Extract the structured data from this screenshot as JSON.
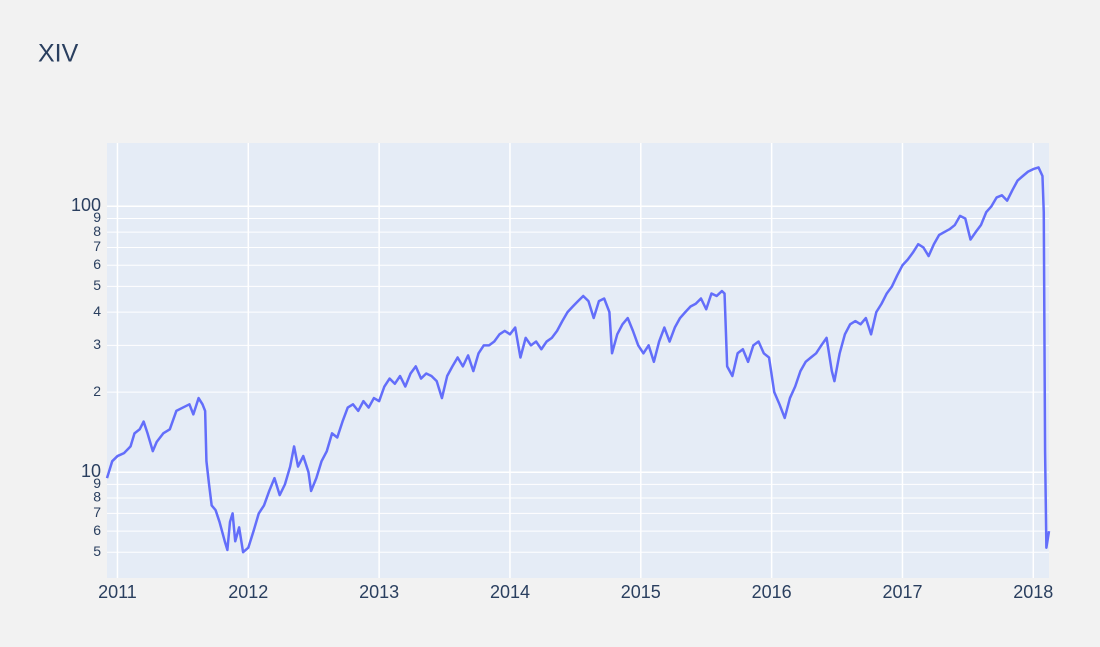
{
  "chart_data": {
    "type": "line",
    "title": "XIV",
    "color": "#636efa",
    "log_y": true,
    "grid": true,
    "xlim": [
      2010.92,
      2018.12
    ],
    "xticks": [
      2011,
      2012,
      2013,
      2014,
      2015,
      2016,
      2017,
      2018
    ],
    "ylim": [
      4,
      173
    ],
    "yticks": [
      5,
      6,
      7,
      8,
      9,
      10,
      {
        "value": 20,
        "label": "2"
      },
      {
        "value": 30,
        "label": "3"
      },
      {
        "value": 40,
        "label": "4"
      },
      {
        "value": 50,
        "label": "5"
      },
      {
        "value": 60,
        "label": "6"
      },
      {
        "value": 70,
        "label": "7"
      },
      {
        "value": 80,
        "label": "8"
      },
      {
        "value": 90,
        "label": "9"
      },
      100
    ],
    "x": [
      2010.92,
      2010.96,
      2011.0,
      2011.05,
      2011.1,
      2011.13,
      2011.17,
      2011.2,
      2011.23,
      2011.27,
      2011.3,
      2011.35,
      2011.4,
      2011.45,
      2011.5,
      2011.55,
      2011.58,
      2011.62,
      2011.65,
      2011.67,
      2011.68,
      2011.7,
      2011.72,
      2011.75,
      2011.78,
      2011.82,
      2011.84,
      2011.86,
      2011.88,
      2011.9,
      2011.93,
      2011.96,
      2012.0,
      2012.04,
      2012.08,
      2012.12,
      2012.16,
      2012.2,
      2012.24,
      2012.28,
      2012.32,
      2012.35,
      2012.38,
      2012.42,
      2012.46,
      2012.48,
      2012.52,
      2012.56,
      2012.6,
      2012.64,
      2012.68,
      2012.72,
      2012.76,
      2012.8,
      2012.84,
      2012.88,
      2012.92,
      2012.96,
      2013.0,
      2013.04,
      2013.08,
      2013.12,
      2013.16,
      2013.2,
      2013.24,
      2013.28,
      2013.32,
      2013.36,
      2013.4,
      2013.44,
      2013.48,
      2013.52,
      2013.56,
      2013.6,
      2013.64,
      2013.68,
      2013.72,
      2013.76,
      2013.8,
      2013.84,
      2013.88,
      2013.92,
      2013.96,
      2014.0,
      2014.04,
      2014.08,
      2014.12,
      2014.16,
      2014.2,
      2014.24,
      2014.28,
      2014.32,
      2014.36,
      2014.4,
      2014.44,
      2014.48,
      2014.52,
      2014.56,
      2014.6,
      2014.64,
      2014.68,
      2014.72,
      2014.76,
      2014.78,
      2014.82,
      2014.86,
      2014.9,
      2014.94,
      2014.98,
      2015.02,
      2015.06,
      2015.1,
      2015.14,
      2015.18,
      2015.22,
      2015.26,
      2015.3,
      2015.34,
      2015.38,
      2015.42,
      2015.46,
      2015.5,
      2015.54,
      2015.58,
      2015.62,
      2015.64,
      2015.66,
      2015.7,
      2015.74,
      2015.78,
      2015.82,
      2015.86,
      2015.9,
      2015.94,
      2015.98,
      2016.02,
      2016.06,
      2016.1,
      2016.14,
      2016.18,
      2016.22,
      2016.26,
      2016.3,
      2016.34,
      2016.38,
      2016.42,
      2016.46,
      2016.48,
      2016.52,
      2016.56,
      2016.6,
      2016.64,
      2016.68,
      2016.72,
      2016.76,
      2016.8,
      2016.84,
      2016.88,
      2016.92,
      2016.96,
      2017.0,
      2017.04,
      2017.08,
      2017.12,
      2017.16,
      2017.2,
      2017.24,
      2017.28,
      2017.32,
      2017.36,
      2017.4,
      2017.44,
      2017.48,
      2017.52,
      2017.56,
      2017.6,
      2017.64,
      2017.68,
      2017.72,
      2017.76,
      2017.8,
      2017.84,
      2017.88,
      2017.92,
      2017.96,
      2018.0,
      2018.04,
      2018.07,
      2018.08,
      2018.09,
      2018.1,
      2018.12
    ],
    "values": [
      9.5,
      11,
      11.5,
      11.8,
      12.5,
      14,
      14.5,
      15.5,
      14,
      12,
      13,
      14,
      14.5,
      17,
      17.5,
      18,
      16.5,
      19,
      18,
      17,
      11,
      9,
      7.5,
      7.2,
      6.5,
      5.5,
      5.1,
      6.5,
      7,
      5.5,
      6.2,
      5,
      5.2,
      6,
      7,
      7.5,
      8.5,
      9.5,
      8.2,
      9,
      10.5,
      12.5,
      10.5,
      11.5,
      10,
      8.5,
      9.5,
      11,
      12,
      14,
      13.5,
      15.5,
      17.5,
      18,
      17,
      18.5,
      17.5,
      19,
      18.5,
      21,
      22.5,
      21.5,
      23,
      21,
      23.5,
      25,
      22.5,
      23.5,
      23,
      22,
      19,
      23,
      25,
      27,
      25,
      27.5,
      24,
      28,
      30,
      30,
      31,
      33,
      34,
      33,
      35,
      27,
      32,
      30,
      31,
      29,
      31,
      32,
      34,
      37,
      40,
      42,
      44,
      46,
      44,
      38,
      44,
      45,
      40,
      28,
      33,
      36,
      38,
      34,
      30,
      28,
      30,
      26,
      31,
      35,
      31,
      35,
      38,
      40,
      42,
      43,
      45,
      41,
      47,
      46,
      48,
      47,
      25,
      23,
      28,
      29,
      26,
      30,
      31,
      28,
      27,
      20,
      18,
      16,
      19,
      21,
      24,
      26,
      27,
      28,
      30,
      32,
      24,
      22,
      28,
      33,
      36,
      37,
      36,
      38,
      33,
      40,
      43,
      47,
      50,
      55,
      60,
      63,
      67,
      72,
      70,
      65,
      72,
      78,
      80,
      82,
      85,
      92,
      90,
      75,
      80,
      85,
      95,
      100,
      108,
      110,
      105,
      115,
      125,
      130,
      135,
      138,
      140,
      130,
      95,
      12,
      5.2,
      6
    ]
  }
}
